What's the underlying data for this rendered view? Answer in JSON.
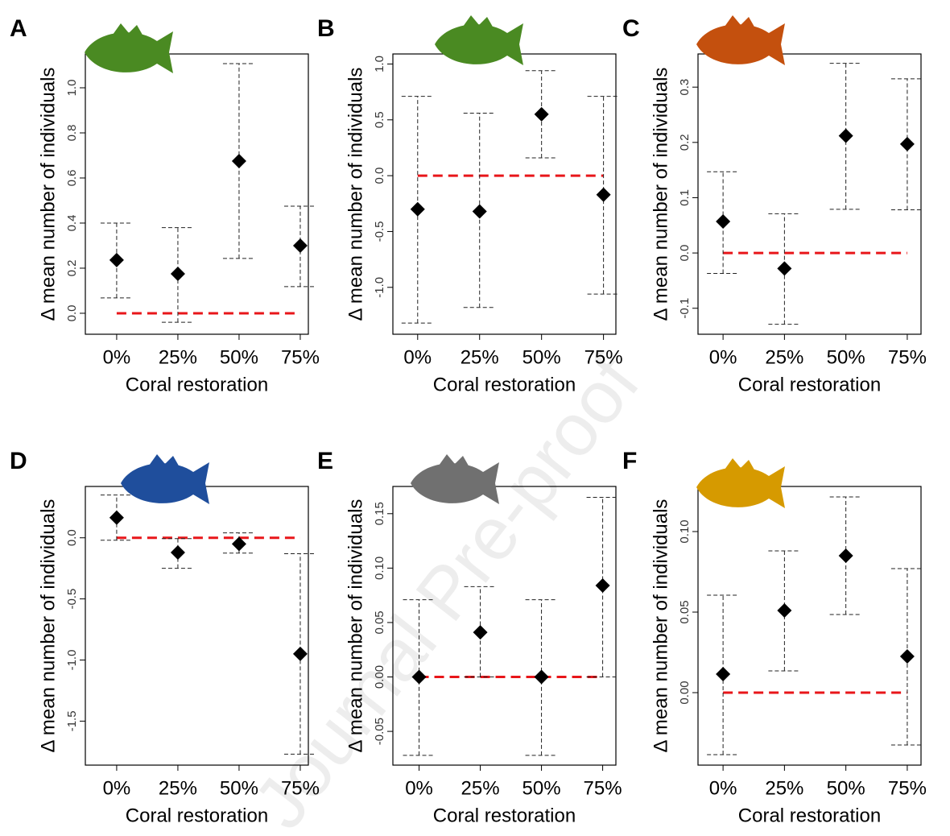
{
  "watermark": "Journal Pre-proof",
  "chart_data": [
    {
      "type": "errorbar",
      "panel": "A",
      "icon_color": "#4a8a22",
      "xlabel": "Coral restoration",
      "ylabel": "Δ mean number of individuals",
      "x": [
        0,
        25,
        50,
        75
      ],
      "values": [
        0.236,
        0.175,
        0.675,
        0.3
      ],
      "ci_low": [
        0.068,
        -0.04,
        0.243,
        0.118
      ],
      "ci_high": [
        0.4,
        0.38,
        1.107,
        0.475
      ],
      "xlim": [
        -12.8,
        78.3
      ],
      "xticks": [
        {
          "value": 0,
          "label": "0%"
        },
        {
          "value": 25,
          "label": "25%"
        },
        {
          "value": 50,
          "label": "50%"
        },
        {
          "value": 75,
          "label": "75%"
        }
      ],
      "ylim": [
        -0.093,
        1.15
      ],
      "yticks": [
        {
          "value": 0,
          "label": "0.0"
        },
        0.2,
        0.4,
        0.6,
        0.8,
        {
          "value": 1,
          "label": "1.0"
        }
      ],
      "hline": 0,
      "hline_color": "#e8161a"
    },
    {
      "type": "errorbar",
      "panel": "B",
      "icon_color": "#4a8a22",
      "xlabel": "Coral restoration",
      "ylabel": "Δ mean number of individuals",
      "x": [
        0,
        25,
        50,
        75
      ],
      "values": [
        -0.3,
        -0.32,
        0.55,
        -0.17
      ],
      "ci_low": [
        -1.32,
        -1.18,
        0.16,
        -1.06
      ],
      "ci_high": [
        0.71,
        0.56,
        0.94,
        0.71
      ],
      "xlim": [
        -10,
        80
      ],
      "xticks": [
        {
          "value": 0,
          "label": "0%"
        },
        {
          "value": 25,
          "label": "25%"
        },
        {
          "value": 50,
          "label": "50%"
        },
        {
          "value": 75,
          "label": "75%"
        }
      ],
      "ylim": [
        -1.42,
        1.09
      ],
      "yticks": [
        {
          "value": -1,
          "label": "-1.0"
        },
        -0.5,
        {
          "value": 0,
          "label": "0.0"
        },
        0.5,
        {
          "value": 1,
          "label": "1.0"
        }
      ],
      "hline": 0,
      "hline_color": "#e8161a"
    },
    {
      "type": "errorbar",
      "panel": "C",
      "icon_color": "#c4500e",
      "xlabel": "Coral restoration",
      "ylabel": "Δ mean number of individuals",
      "x": [
        0,
        25,
        50,
        75
      ],
      "values": [
        0.057,
        -0.028,
        0.212,
        0.197
      ],
      "ci_low": [
        -0.037,
        -0.129,
        0.079,
        0.078
      ],
      "ci_high": [
        0.147,
        0.071,
        0.343,
        0.315
      ],
      "xlim": [
        -10.2,
        80.6
      ],
      "xticks": [
        {
          "value": 0,
          "label": "0%"
        },
        {
          "value": 25,
          "label": "25%"
        },
        {
          "value": 50,
          "label": "50%"
        },
        {
          "value": 75,
          "label": "75%"
        }
      ],
      "ylim": [
        -0.147,
        0.36
      ],
      "yticks": [
        -0.1,
        {
          "value": 0,
          "label": "0.0"
        },
        0.1,
        0.2,
        0.3
      ],
      "hline": 0,
      "hline_color": "#e8161a"
    },
    {
      "type": "errorbar",
      "panel": "D",
      "icon_color": "#1f4e9c",
      "xlabel": "Coral restoration",
      "ylabel": "Δ mean number of individuals",
      "x": [
        0,
        25,
        50,
        75
      ],
      "values": [
        0.165,
        -0.12,
        -0.05,
        -0.95
      ],
      "ci_low": [
        -0.02,
        -0.25,
        -0.125,
        -1.77
      ],
      "ci_high": [
        0.35,
        -0.007,
        0.04,
        -0.13
      ],
      "xlim": [
        -12.8,
        78.3
      ],
      "xticks": [
        {
          "value": 0,
          "label": "0%"
        },
        {
          "value": 25,
          "label": "25%"
        },
        {
          "value": 50,
          "label": "50%"
        },
        {
          "value": 75,
          "label": "75%"
        }
      ],
      "ylim": [
        -1.86,
        0.42
      ],
      "yticks": [
        -1.5,
        {
          "value": -1,
          "label": "-1.0"
        },
        -0.5,
        {
          "value": 0,
          "label": "0.0"
        }
      ],
      "hline": 0,
      "hline_color": "#e8161a"
    },
    {
      "type": "errorbar",
      "panel": "E",
      "icon_color": "#707070",
      "xlabel": "Coral restoration",
      "ylabel": "Δ mean number of individuals",
      "x": [
        0,
        25,
        50,
        75
      ],
      "values": [
        0,
        0.041,
        0,
        0.084
      ],
      "ci_low": [
        -0.072,
        0,
        -0.072,
        0
      ],
      "ci_high": [
        0.071,
        0.083,
        0.071,
        0.165
      ],
      "xlim": [
        -10.7,
        80.4
      ],
      "xticks": [
        {
          "value": 0,
          "label": "0%"
        },
        {
          "value": 25,
          "label": "25%"
        },
        {
          "value": 50,
          "label": "50%"
        },
        {
          "value": 75,
          "label": "75%"
        }
      ],
      "ylim": [
        -0.081,
        0.175
      ],
      "yticks": [
        -0.05,
        {
          "value": 0,
          "label": "0.00"
        },
        0.05,
        {
          "value": 0.1,
          "label": "0.10"
        },
        0.15
      ],
      "hline": 0,
      "hline_color": "#e8161a"
    },
    {
      "type": "errorbar",
      "panel": "F",
      "icon_color": "#d69a00",
      "xlabel": "Coral restoration",
      "ylabel": "Δ mean number of individuals",
      "x": [
        0,
        25,
        50,
        75
      ],
      "values": [
        0.0115,
        0.051,
        0.085,
        0.0225
      ],
      "ci_low": [
        -0.0385,
        0.0135,
        0.0485,
        -0.0325
      ],
      "ci_high": [
        0.0605,
        0.088,
        0.1215,
        0.077
      ],
      "xlim": [
        -10.2,
        80.6
      ],
      "xticks": [
        {
          "value": 0,
          "label": "0%"
        },
        {
          "value": 25,
          "label": "25%"
        },
        {
          "value": 50,
          "label": "50%"
        },
        {
          "value": 75,
          "label": "75%"
        }
      ],
      "ylim": [
        -0.045,
        0.128
      ],
      "yticks": [
        {
          "value": 0,
          "label": "0.00"
        },
        0.05,
        {
          "value": 0.1,
          "label": "0.10"
        }
      ],
      "hline": 0,
      "hline_color": "#e8161a"
    }
  ]
}
